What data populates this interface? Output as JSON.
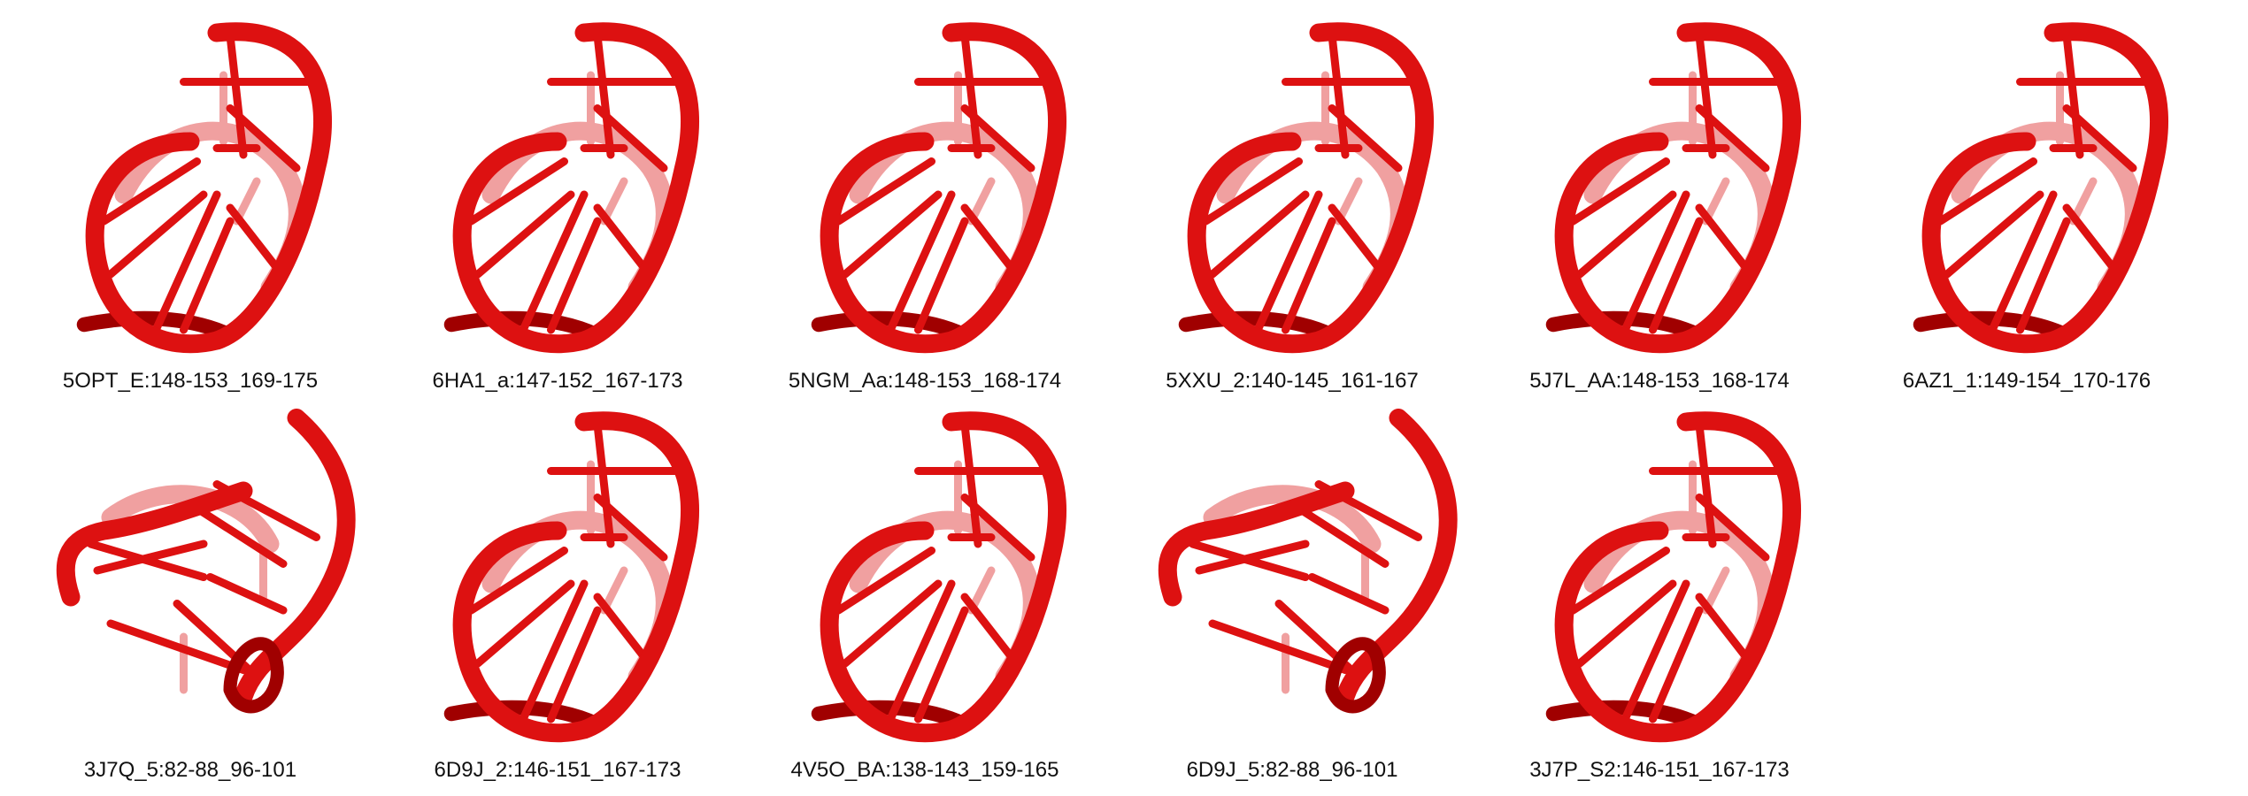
{
  "colors": {
    "strand": "#dd1111",
    "strand_dark": "#a00000",
    "strand_faded": "#f0a0a0"
  },
  "structures": [
    {
      "label": "5OPT_E:148-153_169-175",
      "shape": "loop"
    },
    {
      "label": "6HA1_a:147-152_167-173",
      "shape": "loop"
    },
    {
      "label": "5NGM_Aa:148-153_168-174",
      "shape": "loop"
    },
    {
      "label": "5XXU_2:140-145_161-167",
      "shape": "loop"
    },
    {
      "label": "5J7L_AA:148-153_168-174",
      "shape": "loop"
    },
    {
      "label": "6AZ1_1:149-154_170-176",
      "shape": "loop"
    },
    {
      "label": "3J7Q_5:82-88_96-101",
      "shape": "open"
    },
    {
      "label": "6D9J_2:146-151_167-173",
      "shape": "loop"
    },
    {
      "label": "4V5O_BA:138-143_159-165",
      "shape": "loop"
    },
    {
      "label": "6D9J_5:82-88_96-101",
      "shape": "open"
    },
    {
      "label": "3J7P_S2:146-151_167-173",
      "shape": "loop"
    }
  ]
}
